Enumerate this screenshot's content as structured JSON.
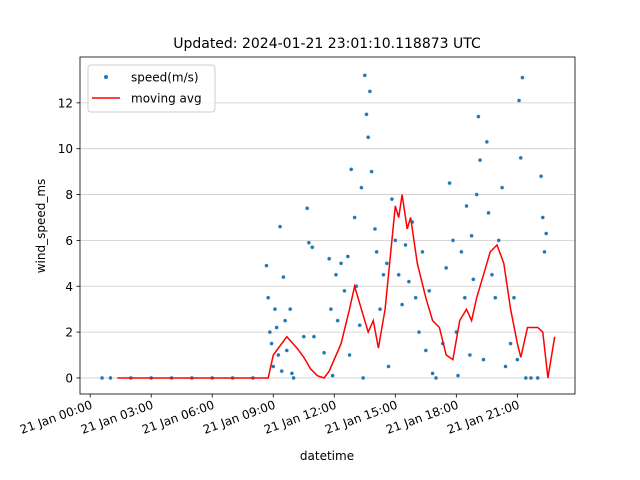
{
  "chart_data": {
    "type": "scatter",
    "title": "Updated: 2024-01-21 23:01:10.118873 UTC",
    "x_label": "datetime",
    "y_label": "wind_speed_ms",
    "xlim": [
      "20 Jan 23:30",
      "21 Jan 23:50"
    ],
    "xticks": [
      "21 Jan 00:00",
      "21 Jan 03:00",
      "21 Jan 06:00",
      "21 Jan 09:00",
      "21 Jan 12:00",
      "21 Jan 15:00",
      "21 Jan 18:00",
      "21 Jan 21:00"
    ],
    "ylim": [
      -0.7,
      14.0
    ],
    "yticks": [
      0,
      2,
      4,
      6,
      8,
      10,
      12
    ],
    "grid": true,
    "legend": "upper left",
    "series": [
      {
        "name": "speed(m/s)",
        "type": "scatter",
        "color": "#1f77b4",
        "x": [
          "21 Jan 00:35",
          "21 Jan 01:00",
          "21 Jan 02:00",
          "21 Jan 03:00",
          "21 Jan 04:00",
          "21 Jan 05:00",
          "21 Jan 06:00",
          "21 Jan 07:00",
          "21 Jan 08:00",
          "21 Jan 08:40",
          "21 Jan 08:45",
          "21 Jan 08:50",
          "21 Jan 08:55",
          "21 Jan 09:00",
          "21 Jan 09:05",
          "21 Jan 09:10",
          "21 Jan 09:15",
          "21 Jan 09:20",
          "21 Jan 09:25",
          "21 Jan 09:30",
          "21 Jan 09:35",
          "21 Jan 09:40",
          "21 Jan 09:50",
          "21 Jan 09:55",
          "21 Jan 10:00",
          "21 Jan 10:30",
          "21 Jan 10:40",
          "21 Jan 10:45",
          "21 Jan 10:55",
          "21 Jan 11:00",
          "21 Jan 11:30",
          "21 Jan 11:45",
          "21 Jan 11:50",
          "21 Jan 11:55",
          "21 Jan 12:05",
          "21 Jan 12:10",
          "21 Jan 12:20",
          "21 Jan 12:30",
          "21 Jan 12:40",
          "21 Jan 12:45",
          "21 Jan 12:50",
          "21 Jan 13:00",
          "21 Jan 13:05",
          "21 Jan 13:15",
          "21 Jan 13:20",
          "21 Jan 13:25",
          "21 Jan 13:30",
          "21 Jan 13:35",
          "21 Jan 13:40",
          "21 Jan 13:45",
          "21 Jan 13:50",
          "21 Jan 14:00",
          "21 Jan 14:05",
          "21 Jan 14:15",
          "21 Jan 14:25",
          "21 Jan 14:35",
          "21 Jan 14:40",
          "21 Jan 14:50",
          "21 Jan 15:00",
          "21 Jan 15:10",
          "21 Jan 15:20",
          "21 Jan 15:30",
          "21 Jan 15:40",
          "21 Jan 15:50",
          "21 Jan 16:00",
          "21 Jan 16:10",
          "21 Jan 16:20",
          "21 Jan 16:30",
          "21 Jan 16:40",
          "21 Jan 16:50",
          "21 Jan 17:00",
          "21 Jan 17:20",
          "21 Jan 17:30",
          "21 Jan 17:40",
          "21 Jan 17:50",
          "21 Jan 18:00",
          "21 Jan 18:05",
          "21 Jan 18:15",
          "21 Jan 18:25",
          "21 Jan 18:30",
          "21 Jan 18:40",
          "21 Jan 18:45",
          "21 Jan 18:50",
          "21 Jan 19:00",
          "21 Jan 19:05",
          "21 Jan 19:10",
          "21 Jan 19:20",
          "21 Jan 19:30",
          "21 Jan 19:35",
          "21 Jan 19:45",
          "21 Jan 19:55",
          "21 Jan 20:05",
          "21 Jan 20:15",
          "21 Jan 20:25",
          "21 Jan 20:40",
          "21 Jan 20:50",
          "21 Jan 21:00",
          "21 Jan 21:05",
          "21 Jan 21:10",
          "21 Jan 21:15",
          "21 Jan 21:25",
          "21 Jan 21:40",
          "21 Jan 22:00",
          "21 Jan 22:10",
          "21 Jan 22:15",
          "21 Jan 22:20",
          "21 Jan 22:25"
        ],
        "values": [
          0,
          0,
          0,
          0,
          0,
          0,
          0,
          0,
          0,
          4.9,
          3.5,
          2.0,
          1.5,
          0.5,
          3.0,
          2.2,
          1.0,
          6.6,
          0.3,
          4.4,
          2.5,
          1.2,
          3.0,
          0.2,
          0,
          1.8,
          7.4,
          5.9,
          5.7,
          1.8,
          1.1,
          5.2,
          3.0,
          0.1,
          4.5,
          2.5,
          5.0,
          3.8,
          5.3,
          1.0,
          9.1,
          7.0,
          4.0,
          2.3,
          8.3,
          0,
          13.2,
          11.5,
          10.5,
          12.5,
          9.0,
          6.5,
          5.5,
          3.0,
          4.5,
          5.0,
          0.5,
          7.8,
          6.0,
          4.5,
          3.2,
          5.8,
          4.2,
          6.8,
          3.5,
          2.0,
          5.5,
          1.2,
          3.8,
          0.2,
          0,
          1.5,
          4.8,
          8.5,
          6.0,
          2.0,
          0.1,
          5.5,
          3.5,
          7.5,
          1.0,
          6.2,
          4.3,
          8.0,
          11.4,
          9.5,
          0.8,
          10.3,
          7.2,
          4.5,
          3.5,
          6.0,
          8.3,
          0.5,
          1.5,
          3.5,
          0.8,
          12.1,
          9.6,
          13.1,
          0,
          0,
          0,
          8.8,
          7.0,
          5.5,
          6.3
        ]
      },
      {
        "name": "moving avg",
        "type": "line",
        "color": "#ff0000",
        "x": [
          "21 Jan 01:20",
          "21 Jan 08:45",
          "21 Jan 09:00",
          "21 Jan 09:40",
          "21 Jan 10:10",
          "21 Jan 10:30",
          "21 Jan 10:50",
          "21 Jan 11:10",
          "21 Jan 11:30",
          "21 Jan 11:45",
          "21 Jan 12:20",
          "21 Jan 12:45",
          "21 Jan 13:00",
          "21 Jan 13:20",
          "21 Jan 13:40",
          "21 Jan 13:55",
          "21 Jan 14:10",
          "21 Jan 14:30",
          "21 Jan 14:50",
          "21 Jan 15:00",
          "21 Jan 15:10",
          "21 Jan 15:20",
          "21 Jan 15:35",
          "21 Jan 15:45",
          "21 Jan 16:05",
          "21 Jan 16:30",
          "21 Jan 16:50",
          "21 Jan 17:10",
          "21 Jan 17:30",
          "21 Jan 17:50",
          "21 Jan 18:10",
          "21 Jan 18:30",
          "21 Jan 18:45",
          "21 Jan 19:00",
          "21 Jan 19:20",
          "21 Jan 19:40",
          "21 Jan 20:00",
          "21 Jan 20:20",
          "21 Jan 20:40",
          "21 Jan 21:00",
          "21 Jan 21:10",
          "21 Jan 21:30",
          "21 Jan 22:00",
          "21 Jan 22:15",
          "21 Jan 22:30",
          "21 Jan 22:50"
        ],
        "values": [
          0,
          0,
          1.0,
          1.8,
          1.3,
          0.9,
          0.4,
          0.1,
          0,
          0.3,
          1.5,
          3.0,
          4.0,
          3.0,
          2.0,
          2.5,
          1.3,
          3.0,
          6.0,
          7.5,
          7.0,
          8.0,
          6.5,
          7.0,
          5.0,
          3.5,
          2.5,
          2.2,
          1.0,
          0.8,
          2.5,
          3.0,
          2.5,
          3.5,
          4.5,
          5.5,
          5.8,
          5.0,
          3.0,
          1.5,
          0.9,
          2.2,
          2.2,
          2.0,
          0,
          1.8
        ]
      }
    ]
  }
}
